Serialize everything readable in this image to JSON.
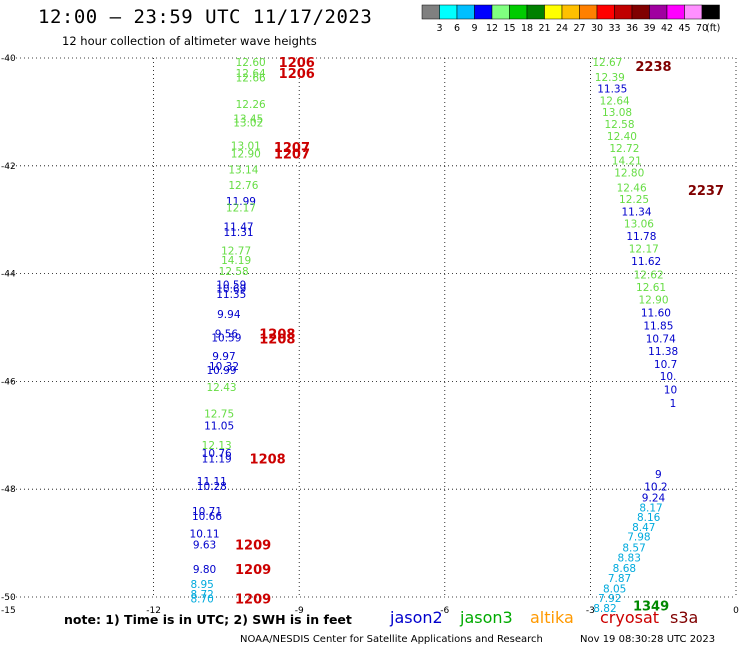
{
  "header": {
    "title": "12:00 – 23:59 UTC 11/17/2023",
    "subtitle": "12 hour collection of altimeter wave heights"
  },
  "colorbar": {
    "unit": "(ft)",
    "ticks": [
      "3",
      "6",
      "9",
      "12",
      "15",
      "18",
      "21",
      "24",
      "27",
      "30",
      "33",
      "36",
      "39",
      "42",
      "45",
      "70"
    ],
    "colors": [
      "#808080",
      "#00ffff",
      "#00bfff",
      "#0000ff",
      "#80ff80",
      "#00cc00",
      "#008000",
      "#ffff00",
      "#ffc000",
      "#ff8000",
      "#ff0000",
      "#c00000",
      "#800000",
      "#a000a0",
      "#ff00ff",
      "#ff90ff",
      "#000000"
    ]
  },
  "footer": {
    "note": "note: 1) Time is in UTC; 2) SWH is in feet",
    "missions": [
      "jason2",
      "jason3",
      "altika",
      "cryosat",
      "s3a"
    ],
    "credit": "NOAA/NESDIS Center for Satellite Applications and Research",
    "stamp": "Nov 19 08:30:28 UTC 2023"
  },
  "chart_data": {
    "type": "scatter",
    "title": "12:00 – 23:59 UTC 11/17/2023",
    "subtitle": "12 hour collection of altimeter wave heights",
    "xlim": [
      -15,
      0
    ],
    "ylim": [
      -50,
      -40
    ],
    "x_ticks": [
      "-12",
      "-9",
      "-6",
      "-3",
      "0"
    ],
    "x_tick_values": [
      -12,
      -9,
      -6,
      -3,
      0
    ],
    "y_ticks": [
      "-40",
      "-42",
      "-44",
      "-46",
      "-48",
      "-50"
    ],
    "y_tick_values": [
      -40,
      -42,
      -44,
      -46,
      -48,
      -50
    ],
    "corner_label": "-15",
    "grid": true,
    "series_colors": {
      "jason2": "#0000cc",
      "jason3": "#66dd44",
      "cyan": "#00aadd",
      "time": "#cc0000",
      "time_s3a": "#800000",
      "time_j3": "#008800"
    },
    "points": [
      {
        "x": -10.0,
        "y": -40.07,
        "label": "12.60",
        "c": "jason3"
      },
      {
        "x": -10.0,
        "y": -40.28,
        "label": "12.64",
        "c": "jason3"
      },
      {
        "x": -10.0,
        "y": -40.36,
        "label": "12.66",
        "c": "jason3"
      },
      {
        "x": -10.0,
        "y": -40.85,
        "label": "12.26",
        "c": "jason3"
      },
      {
        "x": -10.05,
        "y": -41.12,
        "label": "13.45",
        "c": "jason3"
      },
      {
        "x": -10.05,
        "y": -41.2,
        "label": "13.02",
        "c": "jason3"
      },
      {
        "x": -10.1,
        "y": -41.62,
        "label": "13.01",
        "c": "jason3"
      },
      {
        "x": -10.1,
        "y": -41.77,
        "label": "12.90",
        "c": "jason3"
      },
      {
        "x": -10.15,
        "y": -42.07,
        "label": "13.14",
        "c": "jason3"
      },
      {
        "x": -10.15,
        "y": -42.36,
        "label": "12.76",
        "c": "jason3"
      },
      {
        "x": -10.2,
        "y": -42.65,
        "label": "11.99",
        "c": "jason2"
      },
      {
        "x": -10.2,
        "y": -42.77,
        "label": "12.17",
        "c": "jason3"
      },
      {
        "x": -10.25,
        "y": -43.13,
        "label": "11.47",
        "c": "jason2"
      },
      {
        "x": -10.25,
        "y": -43.23,
        "label": "11.31",
        "c": "jason2"
      },
      {
        "x": -10.3,
        "y": -43.57,
        "label": "12.77",
        "c": "jason3"
      },
      {
        "x": -10.3,
        "y": -43.75,
        "label": "14.19",
        "c": "jason3"
      },
      {
        "x": -10.35,
        "y": -43.95,
        "label": "12.58",
        "c": "jason3"
      },
      {
        "x": -10.4,
        "y": -44.2,
        "label": "10.59",
        "c": "jason2"
      },
      {
        "x": -10.4,
        "y": -44.28,
        "label": "10.69",
        "c": "jason2"
      },
      {
        "x": -10.4,
        "y": -44.38,
        "label": "11.35",
        "c": "jason2"
      },
      {
        "x": -10.45,
        "y": -44.75,
        "label": "9.94",
        "c": "jason2"
      },
      {
        "x": -10.5,
        "y": -45.11,
        "label": "9.56",
        "c": "jason2"
      },
      {
        "x": -10.5,
        "y": -45.19,
        "label": "10.59",
        "c": "jason2"
      },
      {
        "x": -10.55,
        "y": -45.53,
        "label": "9.97",
        "c": "jason2"
      },
      {
        "x": -10.55,
        "y": -45.71,
        "label": "10.32",
        "c": "jason2"
      },
      {
        "x": -10.6,
        "y": -45.79,
        "label": "10.99",
        "c": "jason2"
      },
      {
        "x": -10.6,
        "y": -46.1,
        "label": "12.43",
        "c": "jason3"
      },
      {
        "x": -10.65,
        "y": -46.6,
        "label": "12.75",
        "c": "jason3"
      },
      {
        "x": -10.65,
        "y": -46.82,
        "label": "11.05",
        "c": "jason2"
      },
      {
        "x": -10.7,
        "y": -47.18,
        "label": "12.13",
        "c": "jason3"
      },
      {
        "x": -10.7,
        "y": -47.33,
        "label": "10.76",
        "c": "jason2"
      },
      {
        "x": -10.7,
        "y": -47.43,
        "label": "11.19",
        "c": "jason2"
      },
      {
        "x": -10.8,
        "y": -47.85,
        "label": "11.11",
        "c": "jason2"
      },
      {
        "x": -10.8,
        "y": -47.94,
        "label": "10.28",
        "c": "jason2"
      },
      {
        "x": -10.9,
        "y": -48.4,
        "label": "10.71",
        "c": "jason2"
      },
      {
        "x": -10.9,
        "y": -48.5,
        "label": "10.66",
        "c": "jason2"
      },
      {
        "x": -10.95,
        "y": -48.82,
        "label": "10.11",
        "c": "jason2"
      },
      {
        "x": -10.95,
        "y": -49.03,
        "label": "9.63",
        "c": "jason2"
      },
      {
        "x": -10.95,
        "y": -49.48,
        "label": "9.80",
        "c": "jason2"
      },
      {
        "x": -11.0,
        "y": -49.76,
        "label": "8.95",
        "c": "cyan"
      },
      {
        "x": -11.0,
        "y": -49.94,
        "label": "8.72",
        "c": "cyan"
      },
      {
        "x": -11.0,
        "y": -50.03,
        "label": "8.70",
        "c": "cyan"
      },
      {
        "x": -2.65,
        "y": -40.07,
        "label": "12.67",
        "c": "jason3"
      },
      {
        "x": -2.6,
        "y": -40.35,
        "label": "12.39",
        "c": "jason3"
      },
      {
        "x": -2.55,
        "y": -40.57,
        "label": "11.35",
        "c": "jason2"
      },
      {
        "x": -2.5,
        "y": -40.79,
        "label": "12.64",
        "c": "jason3"
      },
      {
        "x": -2.45,
        "y": -41.0,
        "label": "13.08",
        "c": "jason3"
      },
      {
        "x": -2.4,
        "y": -41.22,
        "label": "12.58",
        "c": "jason3"
      },
      {
        "x": -2.35,
        "y": -41.45,
        "label": "12.40",
        "c": "jason3"
      },
      {
        "x": -2.3,
        "y": -41.67,
        "label": "12.72",
        "c": "jason3"
      },
      {
        "x": -2.25,
        "y": -41.9,
        "label": "14.21",
        "c": "jason3"
      },
      {
        "x": -2.2,
        "y": -42.12,
        "label": "12.80",
        "c": "jason3"
      },
      {
        "x": -2.15,
        "y": -42.4,
        "label": "12.46",
        "c": "jason3"
      },
      {
        "x": -2.1,
        "y": -42.62,
        "label": "12.25",
        "c": "jason3"
      },
      {
        "x": -2.05,
        "y": -42.85,
        "label": "11.34",
        "c": "jason2"
      },
      {
        "x": -2.0,
        "y": -43.07,
        "label": "13.06",
        "c": "jason3"
      },
      {
        "x": -1.95,
        "y": -43.3,
        "label": "11.78",
        "c": "jason2"
      },
      {
        "x": -1.9,
        "y": -43.53,
        "label": "12.17",
        "c": "jason3"
      },
      {
        "x": -1.85,
        "y": -43.77,
        "label": "11.62",
        "c": "jason2"
      },
      {
        "x": -1.8,
        "y": -44.02,
        "label": "12.62",
        "c": "jason3"
      },
      {
        "x": -1.75,
        "y": -44.25,
        "label": "12.61",
        "c": "jason3"
      },
      {
        "x": -1.7,
        "y": -44.48,
        "label": "12.90",
        "c": "jason3"
      },
      {
        "x": -1.65,
        "y": -44.72,
        "label": "11.60",
        "c": "jason2"
      },
      {
        "x": -1.6,
        "y": -44.96,
        "label": "11.85",
        "c": "jason2"
      },
      {
        "x": -1.55,
        "y": -45.2,
        "label": "10.74",
        "c": "jason2"
      },
      {
        "x": -1.5,
        "y": -45.44,
        "label": "11.38",
        "c": "jason2"
      },
      {
        "x": -1.45,
        "y": -45.68,
        "label": "10.7",
        "c": "jason2"
      },
      {
        "x": -1.4,
        "y": -45.9,
        "label": "10.",
        "c": "jason2"
      },
      {
        "x": -1.35,
        "y": -46.15,
        "label": "10",
        "c": "jason2"
      },
      {
        "x": -1.3,
        "y": -46.4,
        "label": "1",
        "c": "jason2"
      },
      {
        "x": -1.6,
        "y": -47.72,
        "label": "9",
        "c": "jason2"
      },
      {
        "x": -1.65,
        "y": -47.95,
        "label": "10.2",
        "c": "jason2"
      },
      {
        "x": -1.7,
        "y": -48.15,
        "label": "9.24",
        "c": "jason2"
      },
      {
        "x": -1.75,
        "y": -48.34,
        "label": "8.17",
        "c": "cyan"
      },
      {
        "x": -1.8,
        "y": -48.52,
        "label": "8.16",
        "c": "cyan"
      },
      {
        "x": -1.9,
        "y": -48.7,
        "label": "8.47",
        "c": "cyan"
      },
      {
        "x": -2.0,
        "y": -48.88,
        "label": "7.98",
        "c": "cyan"
      },
      {
        "x": -2.1,
        "y": -49.08,
        "label": "8.57",
        "c": "cyan"
      },
      {
        "x": -2.2,
        "y": -49.27,
        "label": "8.83",
        "c": "cyan"
      },
      {
        "x": -2.3,
        "y": -49.46,
        "label": "8.68",
        "c": "cyan"
      },
      {
        "x": -2.4,
        "y": -49.65,
        "label": "7.87",
        "c": "cyan"
      },
      {
        "x": -2.5,
        "y": -49.84,
        "label": "8.05",
        "c": "cyan"
      },
      {
        "x": -2.6,
        "y": -50.02,
        "label": "7.92",
        "c": "cyan"
      },
      {
        "x": -2.7,
        "y": -50.2,
        "label": "8.82",
        "c": "cyan"
      }
    ],
    "time_labels": [
      {
        "x": -9.05,
        "y": -40.07,
        "label": "1206",
        "c": "time"
      },
      {
        "x": -9.05,
        "y": -40.28,
        "label": "1206",
        "c": "time"
      },
      {
        "x": -9.15,
        "y": -41.65,
        "label": "1207",
        "c": "time"
      },
      {
        "x": -9.15,
        "y": -41.77,
        "label": "1207",
        "c": "time"
      },
      {
        "x": -9.45,
        "y": -45.11,
        "label": "1208",
        "c": "time"
      },
      {
        "x": -9.45,
        "y": -45.2,
        "label": "1208",
        "c": "time"
      },
      {
        "x": -9.65,
        "y": -47.43,
        "label": "1208",
        "c": "time"
      },
      {
        "x": -9.95,
        "y": -49.03,
        "label": "1209",
        "c": "time"
      },
      {
        "x": -9.95,
        "y": -49.48,
        "label": "1209",
        "c": "time"
      },
      {
        "x": -9.95,
        "y": -50.03,
        "label": "1209",
        "c": "time"
      },
      {
        "x": -1.7,
        "y": -40.15,
        "label": "2238",
        "c": "time_s3a"
      },
      {
        "x": -0.62,
        "y": -42.45,
        "label": "2237",
        "c": "time_s3a"
      },
      {
        "x": -1.75,
        "y": -50.16,
        "label": "1349",
        "c": "time_j3"
      }
    ]
  }
}
